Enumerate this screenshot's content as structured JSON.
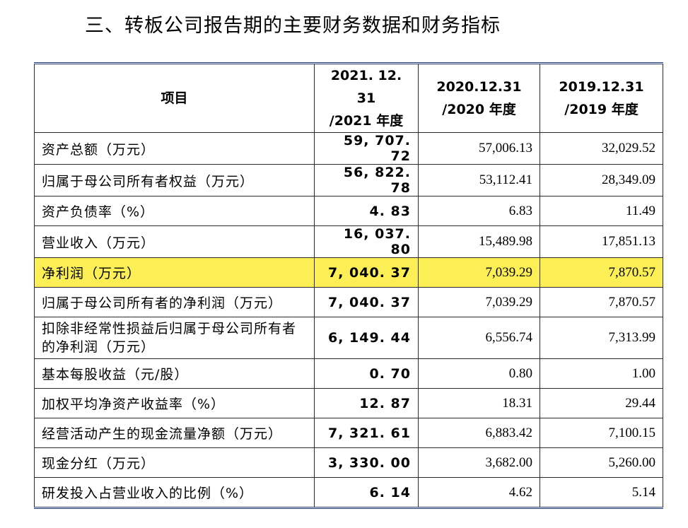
{
  "title": "三、转板公司报告期的主要财务数据和财务指标",
  "headers": {
    "item": "项目",
    "col1_line1": "2021. 12. 31",
    "col1_line2": "/2021 年度",
    "col2_line1": "2020.12.31",
    "col2_line2": "/2020 年度",
    "col3_line1": "2019.12.31",
    "col3_line2": "/2019 年度"
  },
  "rows": [
    {
      "label": "资产总额（万元）",
      "v2021": "59, 707. 72",
      "v2020": "57,006.13",
      "v2019": "32,029.52"
    },
    {
      "label": "归属于母公司所有者权益（万元）",
      "v2021": "56, 822. 78",
      "v2020": "53,112.41",
      "v2019": "28,349.09"
    },
    {
      "label": "资产负债率（%）",
      "v2021": "4. 83",
      "v2020": "6.83",
      "v2019": "11.49"
    },
    {
      "label": "营业收入（万元）",
      "v2021": "16, 037. 80",
      "v2020": "15,489.98",
      "v2019": "17,851.13"
    },
    {
      "label": "净利润（万元）",
      "v2021": "7, 040. 37",
      "v2020": "7,039.29",
      "v2019": "7,870.57"
    },
    {
      "label": "归属于母公司所有者的净利润（万元）",
      "v2021": "7, 040. 37",
      "v2020": "7,039.29",
      "v2019": "7,870.57"
    },
    {
      "label": "扣除非经常性损益后归属于母公司所有者的净利润（万元）",
      "v2021": "6, 149. 44",
      "v2020": "6,556.74",
      "v2019": "7,313.99"
    },
    {
      "label": "基本每股收益（元/股）",
      "v2021": "0. 70",
      "v2020": "0.80",
      "v2019": "1.00"
    },
    {
      "label": "加权平均净资产收益率（%）",
      "v2021": "12. 87",
      "v2020": "18.31",
      "v2019": "29.44"
    },
    {
      "label": "经营活动产生的现金流量净额（万元）",
      "v2021": "7, 321. 61",
      "v2020": "6,883.42",
      "v2019": "7,100.15"
    },
    {
      "label": "现金分红（万元）",
      "v2021": "3, 330. 00",
      "v2020": "3,682.00",
      "v2019": "5,260.00"
    },
    {
      "label": "研发投入占营业收入的比例（%）",
      "v2021": "6. 14",
      "v2020": "4.62",
      "v2019": "5.14"
    }
  ],
  "highlight_color": "#fbef55",
  "border_color": "#1f3a6e"
}
